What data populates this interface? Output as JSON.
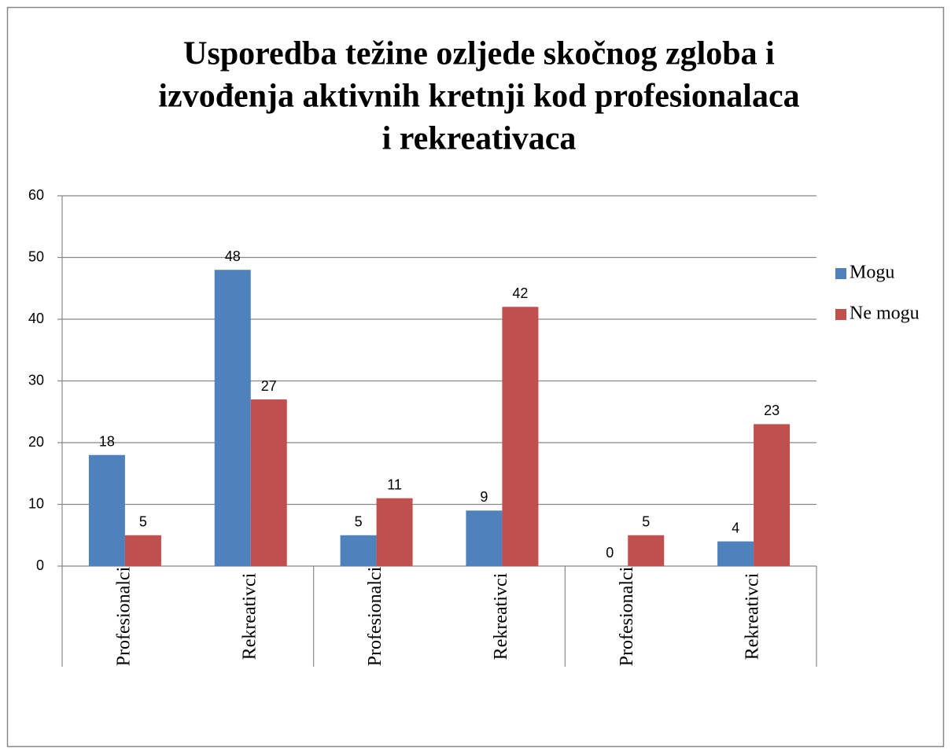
{
  "chart_data": {
    "type": "bar",
    "title": [
      "Usporedba težine ozljede skočnog zgloba i",
      "izvođenja aktivnih kretnji kod profesionalaca",
      "i rekreativaca"
    ],
    "categories": [
      "Profesionalci",
      "Rekreativci",
      "Profesionalci",
      "Rekreativci",
      "Profesionalci",
      "Rekreativci"
    ],
    "series": [
      {
        "name": "Mogu",
        "color": "#4f81bd",
        "values": [
          18,
          48,
          5,
          9,
          0,
          4
        ]
      },
      {
        "name": "Ne mogu",
        "color": "#c0504d",
        "values": [
          5,
          27,
          11,
          42,
          5,
          23
        ]
      }
    ],
    "ylim": [
      0,
      60
    ],
    "yticks": [
      0,
      10,
      20,
      30,
      40,
      50,
      60
    ],
    "grid": true,
    "legend": "right"
  }
}
